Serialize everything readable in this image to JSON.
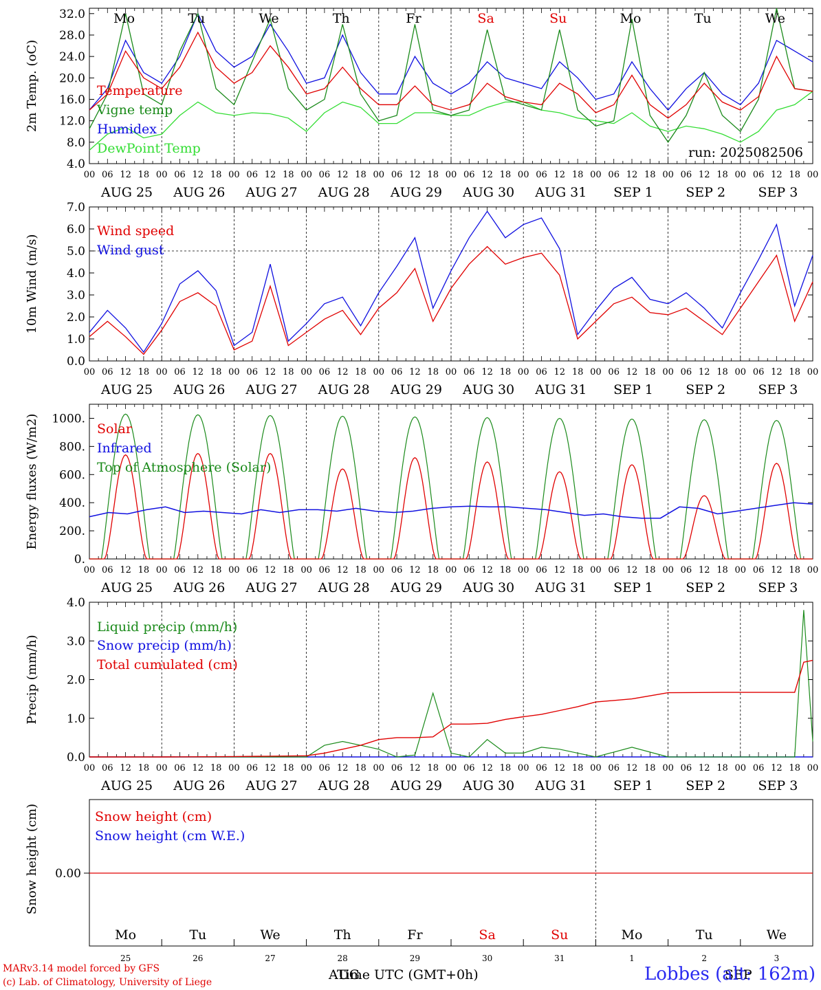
{
  "run_label": "run: 2025082506",
  "footer": {
    "credit_line1": "MARv3.14 model forced by GFS",
    "credit_line2": "(c) Lab. of Climatology, University of Liege",
    "time_axis_label": "Time UTC (GMT+0h)",
    "month_label": "AUG",
    "month_label_2": "SEP",
    "site_label": "Lobbes (alt: 162m)"
  },
  "days": [
    {
      "weekday": "Mo",
      "date": "AUG 25",
      "daynum": "25",
      "weekend": false
    },
    {
      "weekday": "Tu",
      "date": "AUG 26",
      "daynum": "26",
      "weekend": false
    },
    {
      "weekday": "We",
      "date": "AUG 27",
      "daynum": "27",
      "weekend": false
    },
    {
      "weekday": "Th",
      "date": "AUG 28",
      "daynum": "28",
      "weekend": false
    },
    {
      "weekday": "Fr",
      "date": "AUG 29",
      "daynum": "29",
      "weekend": false
    },
    {
      "weekday": "Sa",
      "date": "AUG 30",
      "daynum": "30",
      "weekend": true
    },
    {
      "weekday": "Su",
      "date": "AUG 31",
      "daynum": "31",
      "weekend": true
    },
    {
      "weekday": "Mo",
      "date": "SEP  1",
      "daynum": "1",
      "weekend": false
    },
    {
      "weekday": "Tu",
      "date": "SEP  2",
      "daynum": "2",
      "weekend": false
    },
    {
      "weekday": "We",
      "date": "SEP  3",
      "daynum": "3",
      "weekend": false
    }
  ],
  "hour_ticks": [
    "00",
    "06",
    "12",
    "18"
  ],
  "colors": {
    "red": "#e00000",
    "green": "#1a8a1a",
    "blue": "#1010e0",
    "lightgreen": "#33dd33",
    "weekend": "#e00000",
    "text": "#000000"
  },
  "chart_data": [
    {
      "type": "line",
      "ylabel": "2m Temp. (oC)",
      "ylim": [
        4,
        33
      ],
      "yticks": [
        "4.0",
        "8.0",
        "12.0",
        "16.0",
        "20.0",
        "24.0",
        "28.0",
        "32.0"
      ],
      "x_hours_from_start": [
        0,
        6,
        12,
        18,
        24,
        30,
        36,
        42,
        48,
        54,
        60,
        66,
        72,
        78,
        84,
        90,
        96,
        102,
        108,
        114,
        120,
        126,
        132,
        138,
        144,
        150,
        156,
        162,
        168,
        174,
        180,
        186,
        192,
        198,
        204,
        210,
        216,
        222,
        228,
        234,
        240
      ],
      "series": [
        {
          "name": "Temperature",
          "color": "red",
          "values": [
            14,
            17,
            25,
            20,
            18,
            22,
            28.5,
            22,
            19,
            21,
            26,
            22,
            17,
            18,
            22,
            18,
            15,
            15,
            18.5,
            15,
            14,
            15,
            19,
            16.5,
            15.5,
            15,
            19,
            17,
            13.5,
            15,
            20.5,
            15,
            12.5,
            15,
            19,
            15.5,
            14,
            16.5,
            24,
            18,
            17.5
          ]
        },
        {
          "name": "Vigne temp",
          "color": "green",
          "values": [
            10.5,
            17,
            32,
            17,
            15,
            25,
            32,
            18,
            15,
            23,
            31,
            18,
            14,
            16,
            30,
            17,
            12,
            13,
            30,
            14,
            13,
            14,
            29,
            16,
            15,
            14,
            29,
            14,
            11,
            12,
            31,
            13,
            8,
            13,
            21,
            13,
            10,
            16,
            33,
            18,
            17.5
          ]
        },
        {
          "name": "Humidex",
          "color": "blue",
          "values": [
            14,
            18,
            27,
            21,
            19,
            24,
            32,
            25,
            22,
            24,
            30,
            25,
            19,
            20,
            28,
            21,
            17,
            17,
            24,
            19,
            17,
            19,
            23,
            20,
            19,
            18,
            23,
            20,
            16,
            17,
            23,
            18,
            14,
            18,
            21,
            17,
            15,
            19,
            27,
            25,
            23
          ]
        },
        {
          "name": "DewPoint Temp",
          "color": "lightgreen",
          "values": [
            6.5,
            9.5,
            10.8,
            8.8,
            9.5,
            13,
            15.5,
            13.5,
            13,
            13.5,
            13.3,
            12.5,
            10,
            13.5,
            15.5,
            14.5,
            11.5,
            11.5,
            13.5,
            13.5,
            13,
            13,
            14.5,
            15.5,
            15.5,
            14,
            13.5,
            12.5,
            12,
            11.5,
            13.5,
            11,
            10,
            11,
            10.5,
            9.5,
            8,
            10,
            14,
            15,
            17.5
          ]
        }
      ]
    },
    {
      "type": "line",
      "ylabel": "10m Wind (m/s)",
      "ylim": [
        0,
        7
      ],
      "yticks": [
        "0.0",
        "1.0",
        "2.0",
        "3.0",
        "4.0",
        "5.0",
        "6.0",
        "7.0"
      ],
      "reference_line": 5,
      "x_hours_from_start": [
        0,
        6,
        12,
        18,
        24,
        30,
        36,
        42,
        48,
        54,
        60,
        66,
        72,
        78,
        84,
        90,
        96,
        102,
        108,
        114,
        120,
        126,
        132,
        138,
        144,
        150,
        156,
        162,
        168,
        174,
        180,
        186,
        192,
        198,
        204,
        210,
        216,
        222,
        228,
        234,
        240
      ],
      "series": [
        {
          "name": "Wind speed",
          "color": "red",
          "values": [
            1.1,
            1.8,
            1.1,
            0.3,
            1.4,
            2.7,
            3.1,
            2.5,
            0.5,
            0.9,
            3.4,
            0.7,
            1.3,
            1.9,
            2.3,
            1.2,
            2.4,
            3.1,
            4.2,
            1.8,
            3.3,
            4.4,
            5.2,
            4.4,
            4.7,
            4.9,
            3.9,
            1.0,
            1.8,
            2.6,
            2.9,
            2.2,
            2.1,
            2.4,
            1.8,
            1.2,
            2.4,
            3.6,
            4.8,
            1.8,
            3.6
          ]
        },
        {
          "name": "Wind gust",
          "color": "blue",
          "values": [
            1.3,
            2.3,
            1.5,
            0.4,
            1.7,
            3.5,
            4.1,
            3.2,
            0.7,
            1.3,
            4.4,
            0.9,
            1.7,
            2.6,
            2.9,
            1.6,
            3.1,
            4.3,
            5.6,
            2.4,
            4.1,
            5.6,
            6.8,
            5.6,
            6.2,
            6.5,
            5.1,
            1.2,
            2.3,
            3.3,
            3.8,
            2.8,
            2.6,
            3.1,
            2.4,
            1.5,
            3.1,
            4.6,
            6.2,
            2.5,
            4.8
          ]
        }
      ]
    },
    {
      "type": "line",
      "ylabel": "Energy fluxes (W/m2)",
      "ylim": [
        0,
        1100
      ],
      "yticks": [
        "0.",
        "200.",
        "400.",
        "600.",
        "800.",
        "1000."
      ],
      "series": [
        {
          "name": "Solar",
          "color": "red",
          "daily_peak": [
            740,
            750,
            750,
            640,
            720,
            690,
            620,
            670,
            450,
            680
          ]
        },
        {
          "name": "Infrared",
          "color": "blue",
          "values": [
            300,
            330,
            320,
            350,
            370,
            330,
            340,
            330,
            320,
            350,
            330,
            350,
            350,
            340,
            360,
            340,
            330,
            340,
            360,
            370,
            375,
            370,
            370,
            360,
            350,
            330,
            310,
            320,
            300,
            290,
            290,
            370,
            360,
            320,
            340,
            360,
            380,
            400,
            390
          ]
        },
        {
          "name": "Top of Atmosphere (Solar)",
          "color": "green",
          "daily_peak": [
            1030,
            1025,
            1020,
            1015,
            1010,
            1005,
            1000,
            995,
            990,
            985
          ]
        }
      ]
    },
    {
      "type": "line",
      "ylabel": "Precip (mm/h)",
      "ylim": [
        0,
        4
      ],
      "yticks": [
        "0.0",
        "1.0",
        "2.0",
        "3.0",
        "4.0"
      ],
      "x_hours_from_start": [
        0,
        24,
        48,
        60,
        72,
        78,
        84,
        90,
        96,
        102,
        108,
        114,
        120,
        126,
        132,
        138,
        144,
        150,
        156,
        162,
        168,
        180,
        192,
        210,
        216,
        228,
        234,
        237,
        240
      ],
      "series": [
        {
          "name": "Liquid precip (mm/h)",
          "color": "green",
          "values": [
            0,
            0,
            0,
            0,
            0,
            0.3,
            0.4,
            0.3,
            0.2,
            0,
            0.05,
            1.65,
            0.1,
            0,
            0.45,
            0.1,
            0.1,
            0.25,
            0.2,
            0.1,
            0,
            0.25,
            0,
            0,
            0,
            0,
            0,
            3.8,
            0.4
          ]
        },
        {
          "name": "Snow precip (mm/h)",
          "color": "blue",
          "values": [
            0,
            0,
            0,
            0,
            0,
            0,
            0,
            0,
            0,
            0,
            0,
            0,
            0,
            0,
            0,
            0,
            0,
            0,
            0,
            0,
            0,
            0,
            0,
            0,
            0,
            0,
            0,
            0,
            0
          ]
        },
        {
          "name": "Total cumulated (cm)",
          "color": "red",
          "values": [
            0,
            0,
            0.01,
            0.02,
            0.03,
            0.1,
            0.2,
            0.3,
            0.45,
            0.5,
            0.5,
            0.52,
            0.85,
            0.85,
            0.87,
            0.97,
            1.04,
            1.1,
            1.2,
            1.3,
            1.42,
            1.5,
            1.66,
            1.67,
            1.67,
            1.67,
            1.67,
            2.45,
            2.5
          ]
        }
      ]
    },
    {
      "type": "line",
      "ylabel": "Snow height (cm)",
      "yticks": [
        "0.00"
      ],
      "series": [
        {
          "name": "Snow height (cm)",
          "color": "red",
          "values": [
            0,
            0
          ]
        },
        {
          "name": "Snow height (cm W.E.)",
          "color": "blue",
          "values": [
            0,
            0
          ]
        }
      ]
    }
  ]
}
